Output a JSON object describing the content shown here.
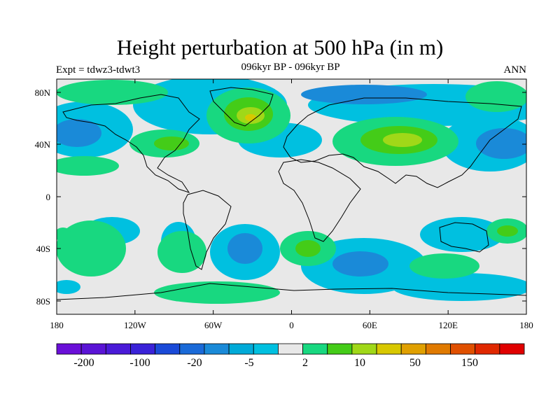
{
  "title": "Height perturbation at 500 hPa (in m)",
  "left_subtitle": "Expt = tdwz3-tdwt3",
  "center_subtitle": "096kyr BP - 096kyr BP",
  "right_subtitle": "ANN",
  "lat_ticks": [
    "80N",
    "40N",
    "0",
    "40S",
    "80S"
  ],
  "lon_ticks": [
    "180",
    "120W",
    "60W",
    "0",
    "60E",
    "120E",
    "180"
  ],
  "colorbar": {
    "colors": [
      "#6a0fd8",
      "#5a14d6",
      "#4a1ad8",
      "#3a22d8",
      "#1a4ad8",
      "#1a6ad8",
      "#1a8ad8",
      "#00aad8",
      "#00c0e0",
      "#e8e8e8",
      "#18d880",
      "#44cc18",
      "#a0d818",
      "#d8c800",
      "#e0a000",
      "#e07a00",
      "#e05000",
      "#e02800",
      "#e00000"
    ],
    "labels": [
      "-200",
      "-100",
      "-20",
      "-5",
      "2",
      "10",
      "50",
      "150"
    ]
  },
  "colors": {
    "background_field": "#e8e8e8",
    "coast": "#000000"
  }
}
